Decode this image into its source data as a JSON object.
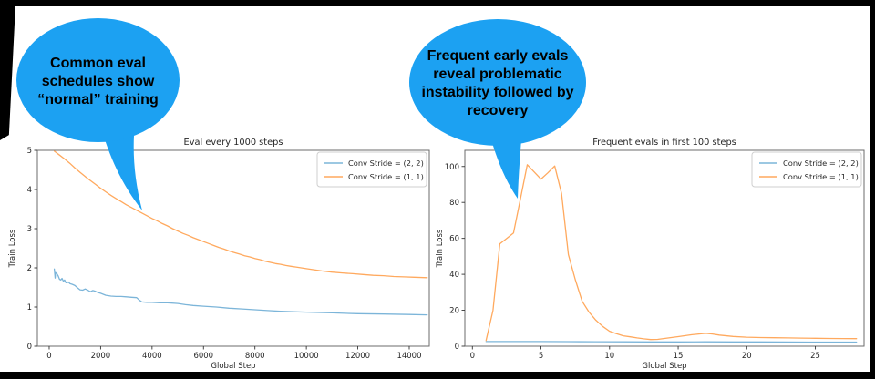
{
  "bubbles": {
    "color": "#1CA1F2",
    "left": {
      "lines": [
        "Common eval",
        "schedules show",
        "“normal” training"
      ]
    },
    "right": {
      "lines": [
        "Frequent early evals",
        "reveal problematic",
        "instability followed by",
        "recovery"
      ]
    }
  },
  "chart_data": [
    {
      "type": "line",
      "title": "Eval every 1000 steps",
      "xlabel": "Global Step",
      "ylabel": "Train Loss",
      "xlim": [
        -460,
        14780
      ],
      "ylim": [
        0,
        5
      ],
      "xticks": [
        0,
        2000,
        4000,
        6000,
        8000,
        10000,
        12000,
        14000
      ],
      "yticks": [
        0,
        1,
        2,
        3,
        4,
        5
      ],
      "grid": false,
      "legend_position": "upper right",
      "series": [
        {
          "name": "Conv Stride =  (2, 2)",
          "color": "#7CB5D9",
          "points": [
            [
              200,
              1.97
            ],
            [
              230,
              1.74
            ],
            [
              250,
              1.88
            ],
            [
              300,
              1.85
            ],
            [
              350,
              1.79
            ],
            [
              400,
              1.71
            ],
            [
              450,
              1.69
            ],
            [
              500,
              1.73
            ],
            [
              550,
              1.66
            ],
            [
              600,
              1.69
            ],
            [
              650,
              1.62
            ],
            [
              700,
              1.62
            ],
            [
              750,
              1.64
            ],
            [
              800,
              1.6
            ],
            [
              900,
              1.58
            ],
            [
              1000,
              1.55
            ],
            [
              1100,
              1.49
            ],
            [
              1200,
              1.44
            ],
            [
              1300,
              1.43
            ],
            [
              1400,
              1.46
            ],
            [
              1500,
              1.43
            ],
            [
              1600,
              1.39
            ],
            [
              1700,
              1.42
            ],
            [
              1800,
              1.4
            ],
            [
              1900,
              1.37
            ],
            [
              2000,
              1.35
            ],
            [
              2200,
              1.3
            ],
            [
              2400,
              1.28
            ],
            [
              2600,
              1.27
            ],
            [
              2800,
              1.27
            ],
            [
              3000,
              1.26
            ],
            [
              3200,
              1.25
            ],
            [
              3400,
              1.24
            ],
            [
              3500,
              1.18
            ],
            [
              3600,
              1.13
            ],
            [
              3800,
              1.12
            ],
            [
              4000,
              1.12
            ],
            [
              4300,
              1.11
            ],
            [
              4600,
              1.11
            ],
            [
              5000,
              1.09
            ],
            [
              5300,
              1.06
            ],
            [
              5600,
              1.04
            ],
            [
              6000,
              1.02
            ],
            [
              6500,
              1.0
            ],
            [
              7000,
              0.97
            ],
            [
              7500,
              0.95
            ],
            [
              8000,
              0.93
            ],
            [
              8500,
              0.91
            ],
            [
              9000,
              0.89
            ],
            [
              9500,
              0.88
            ],
            [
              10000,
              0.87
            ],
            [
              10500,
              0.86
            ],
            [
              11000,
              0.85
            ],
            [
              11500,
              0.84
            ],
            [
              12000,
              0.83
            ],
            [
              13000,
              0.82
            ],
            [
              14000,
              0.81
            ],
            [
              14700,
              0.8
            ]
          ]
        },
        {
          "name": "Conv Stride =  (1, 1)",
          "color": "#FFA95E",
          "points": [
            [
              200,
              4.98
            ],
            [
              400,
              4.88
            ],
            [
              600,
              4.78
            ],
            [
              800,
              4.67
            ],
            [
              1000,
              4.55
            ],
            [
              1200,
              4.44
            ],
            [
              1400,
              4.33
            ],
            [
              1600,
              4.23
            ],
            [
              1800,
              4.13
            ],
            [
              2000,
              4.03
            ],
            [
              2200,
              3.94
            ],
            [
              2400,
              3.85
            ],
            [
              2600,
              3.77
            ],
            [
              2800,
              3.69
            ],
            [
              3000,
              3.61
            ],
            [
              3200,
              3.54
            ],
            [
              3400,
              3.47
            ],
            [
              3600,
              3.4
            ],
            [
              3800,
              3.33
            ],
            [
              4000,
              3.26
            ],
            [
              4200,
              3.2
            ],
            [
              4400,
              3.13
            ],
            [
              4600,
              3.07
            ],
            [
              4800,
              3.0
            ],
            [
              5000,
              2.94
            ],
            [
              5200,
              2.88
            ],
            [
              5400,
              2.83
            ],
            [
              5600,
              2.77
            ],
            [
              5800,
              2.72
            ],
            [
              6000,
              2.67
            ],
            [
              6200,
              2.62
            ],
            [
              6400,
              2.57
            ],
            [
              6600,
              2.52
            ],
            [
              6800,
              2.48
            ],
            [
              7000,
              2.43
            ],
            [
              7200,
              2.39
            ],
            [
              7400,
              2.35
            ],
            [
              7600,
              2.31
            ],
            [
              7800,
              2.28
            ],
            [
              8000,
              2.24
            ],
            [
              8200,
              2.21
            ],
            [
              8400,
              2.17
            ],
            [
              8600,
              2.14
            ],
            [
              8800,
              2.11
            ],
            [
              9000,
              2.09
            ],
            [
              9200,
              2.06
            ],
            [
              9400,
              2.04
            ],
            [
              9600,
              2.02
            ],
            [
              9800,
              2.0
            ],
            [
              10000,
              1.98
            ],
            [
              10300,
              1.95
            ],
            [
              10600,
              1.92
            ],
            [
              11000,
              1.89
            ],
            [
              11400,
              1.87
            ],
            [
              11800,
              1.85
            ],
            [
              12200,
              1.83
            ],
            [
              12600,
              1.81
            ],
            [
              13000,
              1.8
            ],
            [
              13400,
              1.78
            ],
            [
              13800,
              1.77
            ],
            [
              14200,
              1.76
            ],
            [
              14700,
              1.75
            ]
          ]
        }
      ]
    },
    {
      "type": "line",
      "title": "Frequent evals in first 100 steps",
      "xlabel": "Global Step",
      "ylabel": "Train Loss",
      "xlim": [
        -0.55,
        28.55
      ],
      "ylim": [
        0,
        109
      ],
      "xticks": [
        0,
        5,
        10,
        15,
        20,
        25
      ],
      "yticks": [
        0,
        20,
        40,
        60,
        80,
        100
      ],
      "grid": false,
      "legend_position": "upper right",
      "series": [
        {
          "name": "Conv Stride =  (2, 2)",
          "color": "#7CB5D9",
          "points": [
            [
              1,
              2.6
            ],
            [
              3,
              2.6
            ],
            [
              5,
              2.6
            ],
            [
              7,
              2.55
            ],
            [
              9,
              2.5
            ],
            [
              11,
              2.45
            ],
            [
              13,
              2.4
            ],
            [
              15,
              2.4
            ],
            [
              17,
              2.45
            ],
            [
              19,
              2.4
            ],
            [
              21,
              2.4
            ],
            [
              23,
              2.35
            ],
            [
              25,
              2.3
            ],
            [
              27,
              2.3
            ],
            [
              28,
              2.3
            ]
          ]
        },
        {
          "name": "Conv Stride =  (1, 1)",
          "color": "#FFA95E",
          "points": [
            [
              1,
              3.2
            ],
            [
              1.5,
              20
            ],
            [
              2,
              57
            ],
            [
              2.5,
              60
            ],
            [
              3,
              63
            ],
            [
              3.5,
              82
            ],
            [
              4,
              101
            ],
            [
              4.5,
              97
            ],
            [
              5,
              93
            ],
            [
              5.5,
              96.5
            ],
            [
              6,
              100.3
            ],
            [
              6.5,
              85
            ],
            [
              7,
              51
            ],
            [
              7.5,
              37
            ],
            [
              8,
              25
            ],
            [
              8.5,
              19
            ],
            [
              9,
              14.5
            ],
            [
              9.5,
              11
            ],
            [
              10,
              8.3
            ],
            [
              10.5,
              7
            ],
            [
              11,
              5.8
            ],
            [
              11.5,
              5.2
            ],
            [
              12,
              4.6
            ],
            [
              12.5,
              4.1
            ],
            [
              13,
              3.7
            ],
            [
              13.5,
              3.8
            ],
            [
              14,
              4.3
            ],
            [
              15,
              5.3
            ],
            [
              16,
              6.4
            ],
            [
              17,
              7.2
            ],
            [
              17.5,
              6.8
            ],
            [
              18,
              6.2
            ],
            [
              19,
              5.4
            ],
            [
              20,
              5.0
            ],
            [
              21,
              4.8
            ],
            [
              22,
              4.7
            ],
            [
              23,
              4.6
            ],
            [
              24,
              4.5
            ],
            [
              25,
              4.4
            ],
            [
              26,
              4.3
            ],
            [
              27,
              4.25
            ],
            [
              28,
              4.2
            ]
          ]
        }
      ]
    }
  ]
}
